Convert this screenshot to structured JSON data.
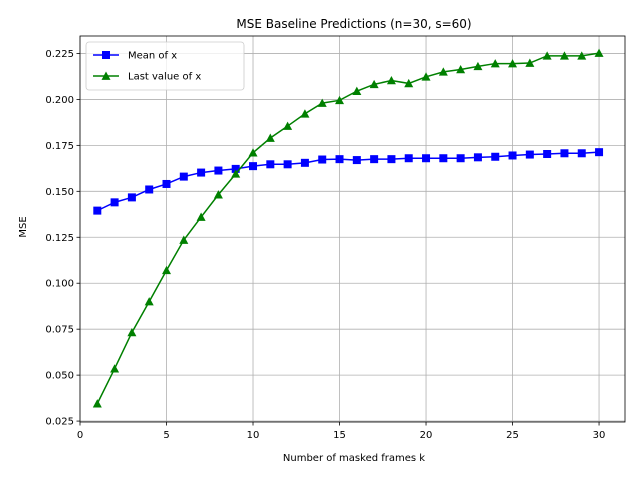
{
  "chart_data": {
    "type": "line",
    "title": "MSE Baseline Predictions (n=30, s=60)",
    "xlabel": "Number of masked frames k",
    "ylabel": "MSE",
    "xlim": [
      0,
      31.5
    ],
    "ylim": [
      0.0245,
      0.2345
    ],
    "xticks": [
      0,
      5,
      10,
      15,
      20,
      25,
      30
    ],
    "xtick_labels": [
      "0",
      "5",
      "10",
      "15",
      "20",
      "25",
      "30"
    ],
    "yticks": [
      0.025,
      0.05,
      0.075,
      0.1,
      0.125,
      0.15,
      0.175,
      0.2,
      0.225
    ],
    "ytick_labels": [
      "0.025",
      "0.050",
      "0.075",
      "0.100",
      "0.125",
      "0.150",
      "0.175",
      "0.200",
      "0.225"
    ],
    "grid": true,
    "legend_position": "top-left",
    "x": [
      1,
      2,
      3,
      4,
      5,
      6,
      7,
      8,
      9,
      10,
      11,
      12,
      13,
      14,
      15,
      16,
      17,
      18,
      19,
      20,
      21,
      22,
      23,
      24,
      25,
      26,
      27,
      28,
      29,
      30
    ],
    "series": [
      {
        "name": "Mean of x",
        "color": "#0000ff",
        "marker": "square",
        "values": [
          0.1395,
          0.144,
          0.1467,
          0.151,
          0.154,
          0.158,
          0.1602,
          0.1613,
          0.1622,
          0.1637,
          0.1647,
          0.1647,
          0.1655,
          0.1673,
          0.1675,
          0.167,
          0.1675,
          0.1675,
          0.168,
          0.168,
          0.168,
          0.168,
          0.1685,
          0.1688,
          0.1695,
          0.17,
          0.1703,
          0.1707,
          0.1707,
          0.1713
        ]
      },
      {
        "name": "Last value of x",
        "color": "#008000",
        "marker": "triangle",
        "values": [
          0.0345,
          0.0535,
          0.0732,
          0.09,
          0.107,
          0.1235,
          0.136,
          0.1482,
          0.1595,
          0.171,
          0.179,
          0.1855,
          0.1922,
          0.198,
          0.1995,
          0.2045,
          0.2082,
          0.2103,
          0.2087,
          0.2123,
          0.215,
          0.2163,
          0.218,
          0.2195,
          0.2195,
          0.2198,
          0.2237,
          0.2237,
          0.2237,
          0.2252
        ]
      }
    ]
  }
}
